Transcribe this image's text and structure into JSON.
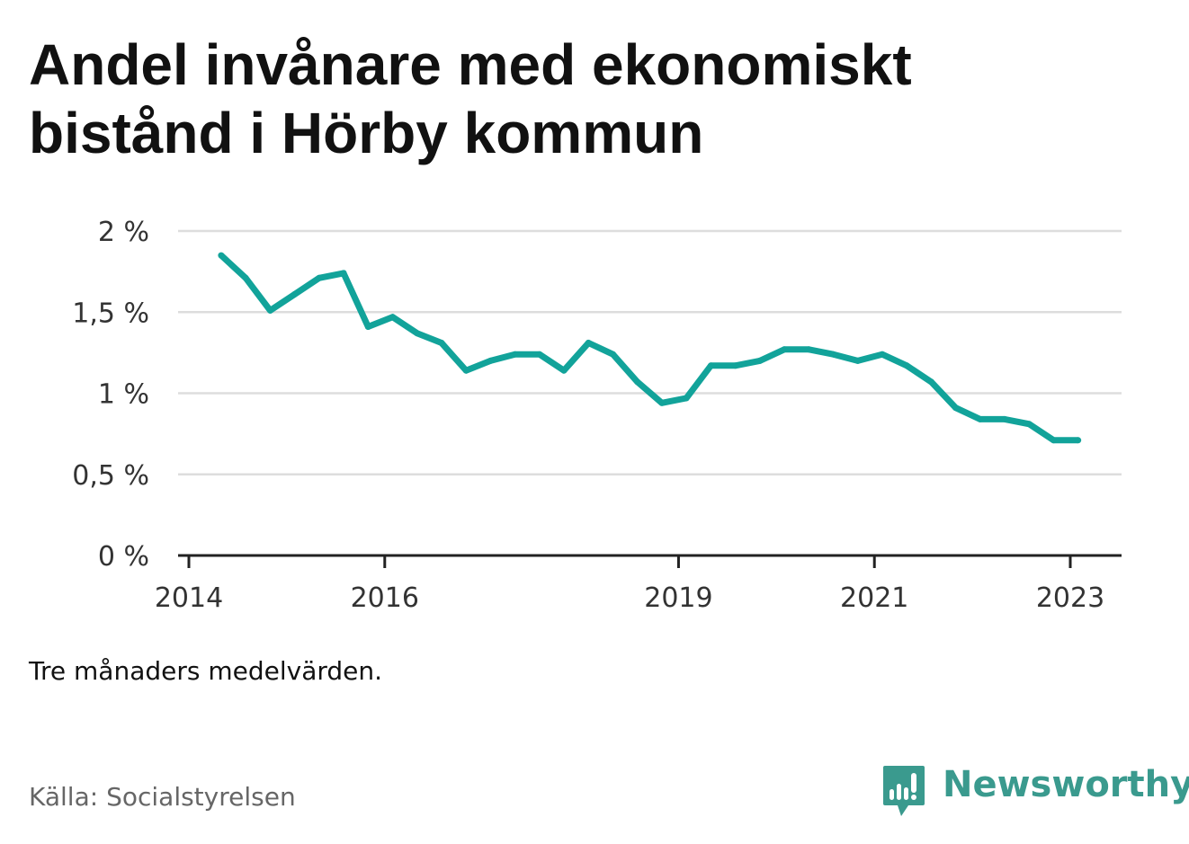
{
  "title": "Andel invånare med ekonomiskt bistånd i Hörby kommun",
  "note": "Tre månaders medelvärden.",
  "source": "Källa: Socialstyrelsen",
  "brand": {
    "name": "Newsworthy",
    "icon": "newsworthy-logo-icon"
  },
  "colors": {
    "line": "#12a39a",
    "grid": "#dddddd",
    "axis": "#222222",
    "brand": "#3a9a8e"
  },
  "chart_data": {
    "type": "line",
    "title": "Andel invånare med ekonomiskt bistånd i Hörby kommun",
    "xlabel": "",
    "ylabel": "",
    "ylim": [
      0,
      2
    ],
    "xlim": [
      2014,
      2024
    ],
    "yticks": [
      0,
      0.5,
      1,
      1.5,
      2
    ],
    "ytick_labels": [
      "0 %",
      "0,5 %",
      "1 %",
      "1,5 %",
      "2 %"
    ],
    "xticks": [
      2014,
      2016,
      2019,
      2021,
      2023
    ],
    "xtick_labels": [
      "2014",
      "2016",
      "2019",
      "2021",
      "2023"
    ],
    "grid": true,
    "series": [
      {
        "x": [
          2014.33,
          2014.58,
          2014.83,
          2015.08,
          2015.33,
          2015.58,
          2015.83,
          2016.08,
          2016.33,
          2016.58,
          2016.83,
          2017.08,
          2017.33,
          2017.58,
          2017.83,
          2018.08,
          2018.33,
          2018.58,
          2018.83,
          2019.08,
          2019.33,
          2019.58,
          2019.83,
          2020.08,
          2020.33,
          2020.58,
          2020.83,
          2021.08,
          2021.33,
          2021.58,
          2021.83,
          2022.08,
          2022.33,
          2022.58,
          2022.83,
          2023.08
        ],
        "values": [
          1.85,
          1.71,
          1.51,
          1.61,
          1.71,
          1.74,
          1.41,
          1.47,
          1.37,
          1.31,
          1.14,
          1.2,
          1.24,
          1.24,
          1.14,
          1.31,
          1.24,
          1.07,
          0.94,
          0.97,
          1.17,
          1.17,
          1.2,
          1.27,
          1.27,
          1.24,
          1.2,
          1.24,
          1.17,
          1.07,
          0.91,
          0.84,
          0.84,
          0.81,
          0.71,
          0.71
        ]
      }
    ]
  }
}
